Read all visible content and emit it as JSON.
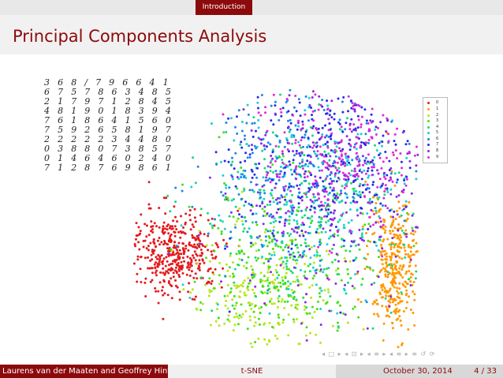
{
  "header": {
    "section": "Introduction"
  },
  "slide": {
    "title": "Principal Components Analysis"
  },
  "digit_samples": [
    "3 6 8 / 7 9 6 6 4 1",
    "6 7 5 7 8 6 3 4 8 5",
    "2 1 7 9 7 1 2 8 4 5",
    "4 8 1 9 0 1 8 3 9 4",
    "7 6 1 8 6 4 1 5 6 0",
    "7 5 9 2 6 5 8 1 9 7",
    "2 2 2 2 2 3 4 4 8 0",
    "0 3 8 8 0 7 3 8 5 7",
    "0 1 4 6 4 6 0 2 4 0",
    "7 1 2 8 7 6 9 8 6 1"
  ],
  "chart_data": {
    "type": "scatter",
    "title": "",
    "xlabel": "",
    "ylabel": "",
    "grid": false,
    "axes_visible": false,
    "legend_position": "top-right",
    "series": [
      {
        "name": "0",
        "color": "#e41a1c"
      },
      {
        "name": "1",
        "color": "#ff9900"
      },
      {
        "name": "2",
        "color": "#b8e61c"
      },
      {
        "name": "3",
        "color": "#44e01a"
      },
      {
        "name": "4",
        "color": "#1ad97a"
      },
      {
        "name": "5",
        "color": "#1ad0d8"
      },
      {
        "name": "6",
        "color": "#1a88e8"
      },
      {
        "name": "7",
        "color": "#2a2ae8"
      },
      {
        "name": "8",
        "color": "#8c2ae8"
      },
      {
        "name": "9",
        "color": "#e02ad8"
      }
    ]
  },
  "nav": {
    "symbols": "◂ □ ▸ ◂ ⊡ ▸ ◂ ≡ ▸ ◂ ≡ ▸ ≡ ↺ ⟳"
  },
  "footer": {
    "authors": "Laurens van der Maaten and Geoffrey Hinton",
    "short_title": "t-SNE",
    "date": "October 30, 2014",
    "page": "4 / 33"
  }
}
